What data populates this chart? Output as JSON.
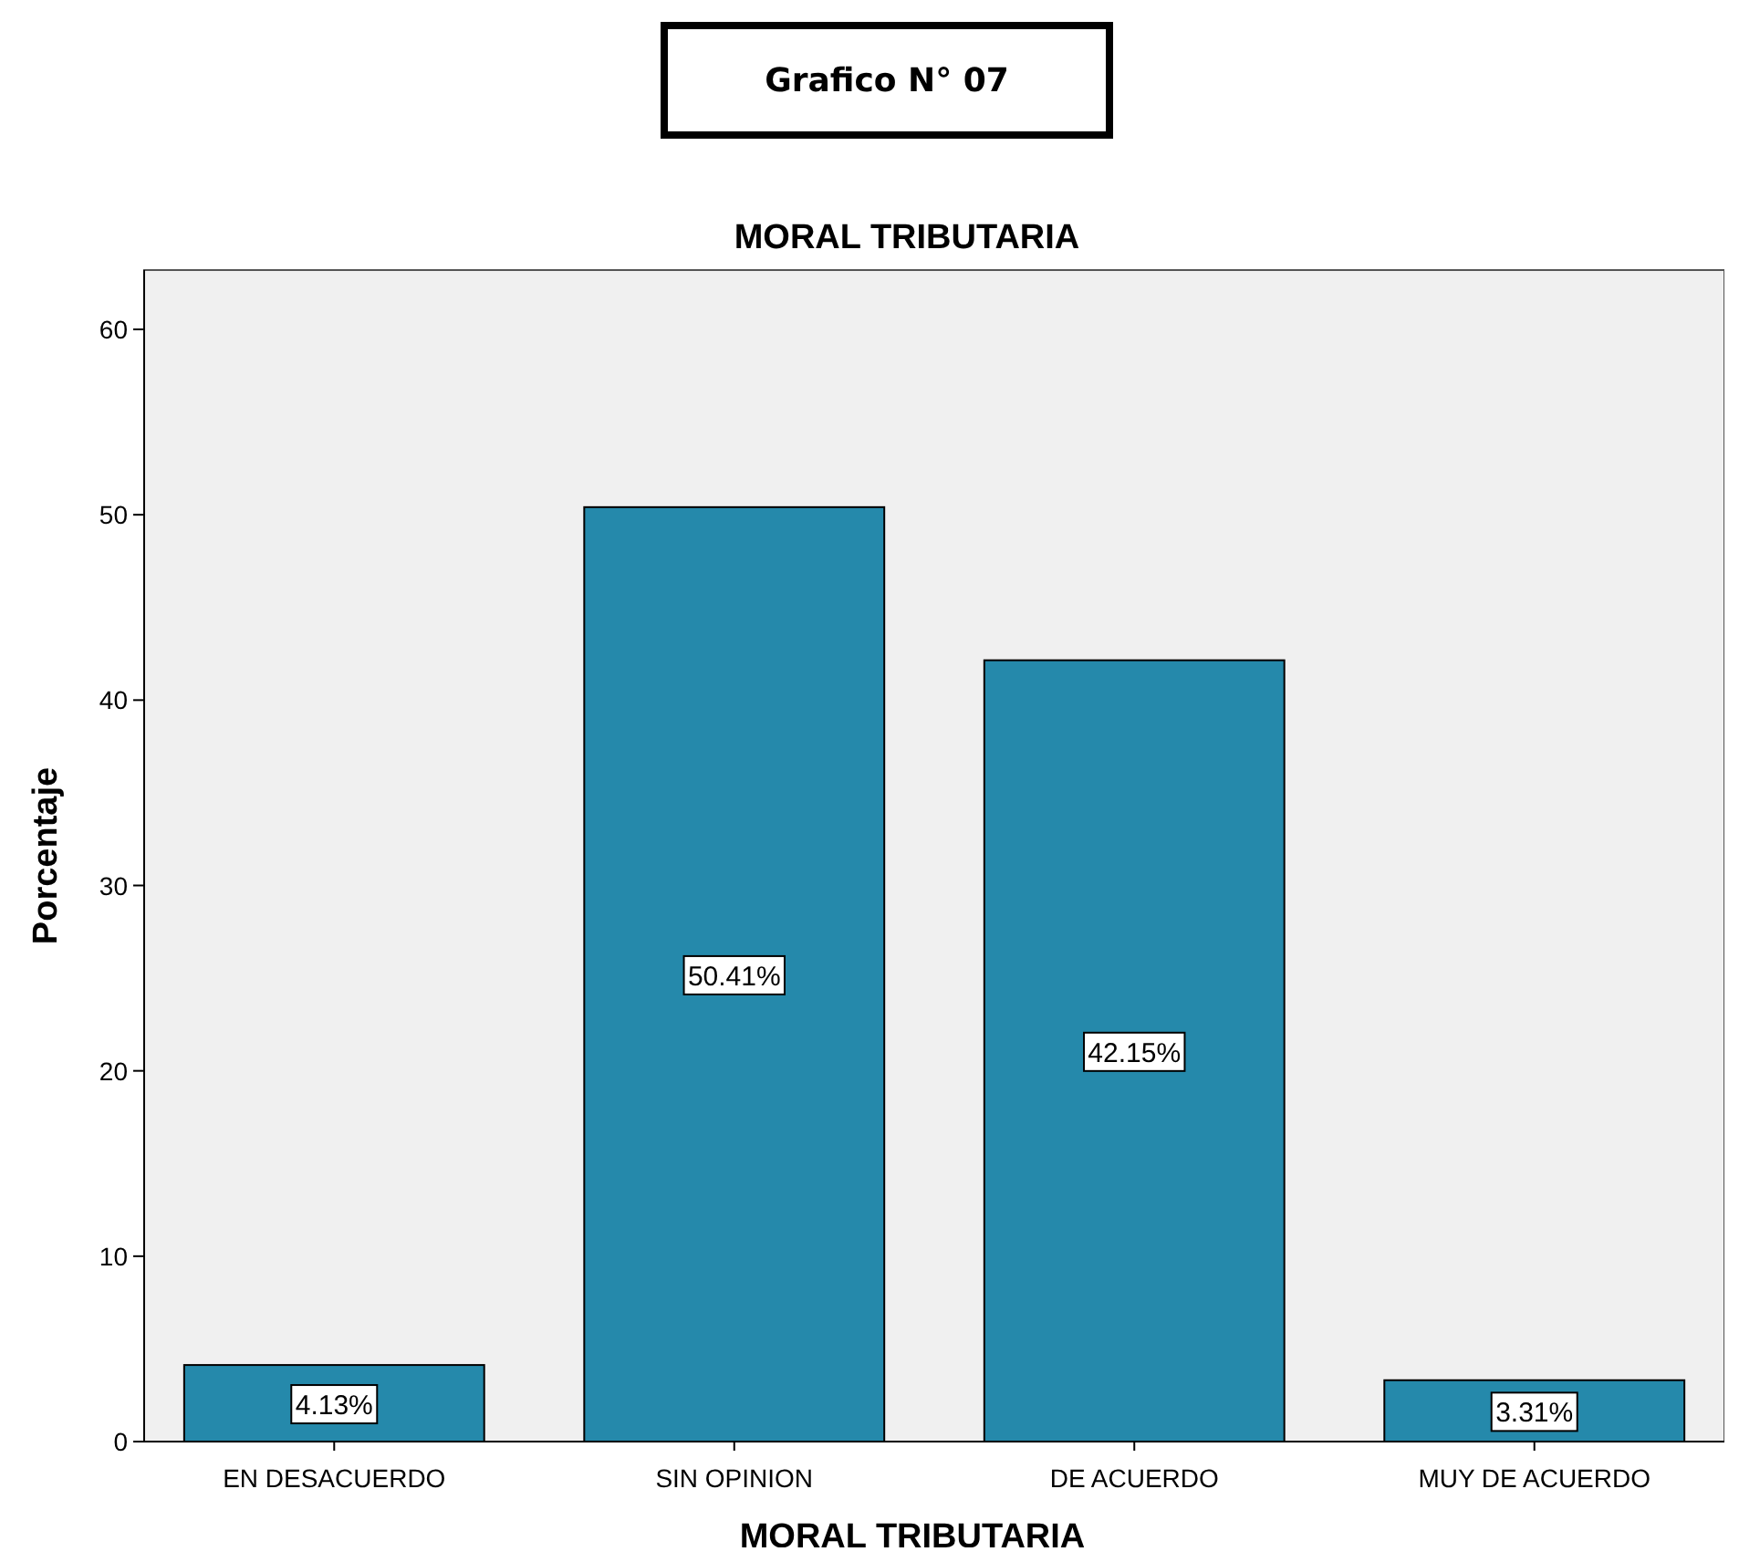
{
  "chart_data": {
    "type": "bar",
    "title": "MORAL TRIBUTARIA",
    "xlabel": "MORAL TRIBUTARIA",
    "ylabel": "Porcentaje",
    "annotations": [
      "Grafico N° 07"
    ],
    "categories": [
      "EN DESACUERDO",
      "SIN OPINION",
      "DE ACUERDO",
      "MUY DE ACUERDO"
    ],
    "values": [
      4.13,
      50.41,
      42.15,
      3.31
    ],
    "value_labels": [
      "4.13%",
      "50.41%",
      "42.15%",
      "3.31%"
    ],
    "color": "#2589ab",
    "ylim": [
      0,
      63.2
    ],
    "yticks": [
      0,
      10,
      20,
      30,
      40,
      50,
      60
    ],
    "grid": false
  }
}
